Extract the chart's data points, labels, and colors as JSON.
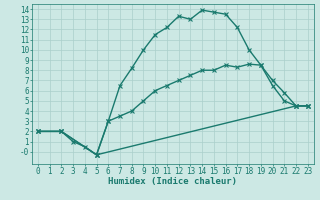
{
  "xlabel": "Humidex (Indice chaleur)",
  "bg_color": "#cce8e4",
  "grid_color": "#aacfcb",
  "line_color": "#1a7a6e",
  "xlim": [
    -0.5,
    23.5
  ],
  "ylim": [
    -1.2,
    14.5
  ],
  "xticks": [
    0,
    1,
    2,
    3,
    4,
    5,
    6,
    7,
    8,
    9,
    10,
    11,
    12,
    13,
    14,
    15,
    16,
    17,
    18,
    19,
    20,
    21,
    22,
    23
  ],
  "yticks": [
    0,
    1,
    2,
    3,
    4,
    5,
    6,
    7,
    8,
    9,
    10,
    11,
    12,
    13,
    14
  ],
  "ytick_labels": [
    "-0",
    "1",
    "2",
    "3",
    "4",
    "5",
    "6",
    "7",
    "8",
    "9",
    "10",
    "11",
    "12",
    "13",
    "14"
  ],
  "line1_x": [
    0,
    2,
    3,
    4,
    5,
    6,
    7,
    8,
    9,
    10,
    11,
    12,
    13,
    14,
    15,
    16,
    17,
    18,
    19,
    20,
    21,
    22,
    23
  ],
  "line1_y": [
    2,
    2,
    1,
    0.5,
    -0.3,
    3.0,
    6.5,
    8.2,
    10.0,
    11.5,
    12.2,
    13.3,
    13.0,
    13.9,
    13.7,
    13.5,
    12.2,
    10.0,
    8.5,
    6.5,
    5.0,
    4.5,
    4.5
  ],
  "line2_x": [
    0,
    2,
    5,
    6,
    7,
    8,
    9,
    10,
    11,
    12,
    13,
    14,
    15,
    16,
    17,
    18,
    19,
    20,
    21,
    22,
    23
  ],
  "line2_y": [
    2,
    2,
    -0.3,
    3.0,
    3.5,
    4.0,
    5.0,
    6.0,
    6.5,
    7.0,
    7.5,
    8.0,
    8.0,
    8.5,
    8.3,
    8.6,
    8.5,
    7.0,
    5.8,
    4.5,
    4.5
  ],
  "line3_x": [
    0,
    2,
    5,
    22,
    23
  ],
  "line3_y": [
    2,
    2,
    -0.3,
    4.5,
    4.5
  ],
  "tick_fontsize": 5.5,
  "label_fontsize": 6.5,
  "lw": 1.0,
  "ms": 2.5,
  "mew": 0.8
}
